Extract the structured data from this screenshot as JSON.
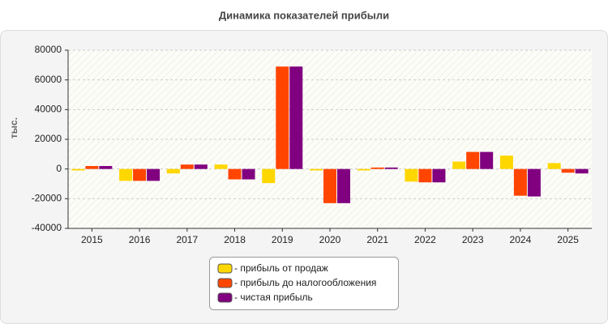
{
  "chart_data": {
    "type": "bar",
    "title": "Динамика показателей прибыли",
    "y_label": "тыс.",
    "categories": [
      "2015",
      "2016",
      "2017",
      "2018",
      "2019",
      "2020",
      "2021",
      "2022",
      "2023",
      "2024",
      "2025"
    ],
    "series": [
      {
        "name": "- прибыль от продаж",
        "color": "#ffd700",
        "values": [
          -1000,
          -8000,
          -3000,
          3000,
          -9500,
          -1000,
          -1000,
          -8500,
          5000,
          9000,
          4000
        ]
      },
      {
        "name": "- прибыль до налогообложения",
        "color": "#ff4500",
        "values": [
          2000,
          -8000,
          3000,
          -7000,
          69000,
          -23000,
          1000,
          -9000,
          11500,
          -18000,
          -2500
        ]
      },
      {
        "name": "- чистая прибыль",
        "color": "#800080",
        "values": [
          2000,
          -8000,
          3000,
          -7000,
          69000,
          -23000,
          1000,
          -9000,
          11500,
          -18500,
          -3000
        ]
      }
    ],
    "ylim": [
      -40000,
      80000
    ],
    "yticks": [
      -40000,
      -20000,
      0,
      20000,
      40000,
      60000,
      80000
    ],
    "grid": true
  }
}
